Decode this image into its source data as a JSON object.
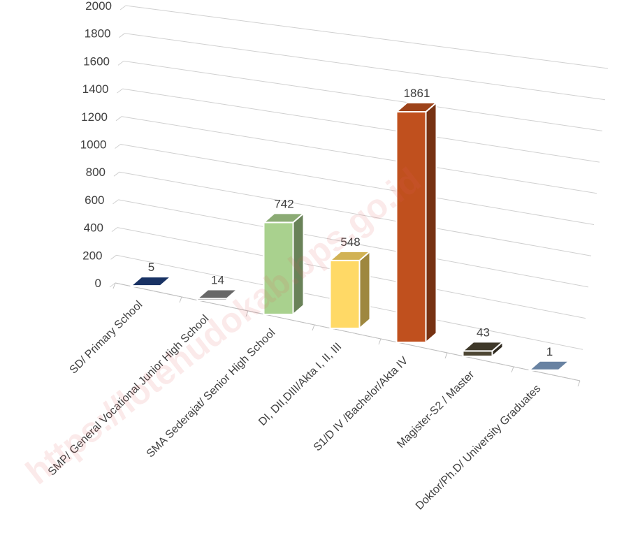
{
  "chart_data": {
    "type": "bar",
    "style": "3d-column",
    "title": "",
    "xlabel": "",
    "ylabel": "",
    "ylim": [
      0,
      2000
    ],
    "yticks": [
      0,
      200,
      400,
      600,
      800,
      1000,
      1200,
      1400,
      1600,
      1800,
      2000
    ],
    "grid": true,
    "legend": "none",
    "categories": [
      "SD/ Primary School",
      "SMP/ General Vocational Junior High School",
      "SMA Sederajat/ Senior High School",
      "DI, DII,DIII/Akta I, II, III",
      "S1/D IV /Bachelor/Akta IV",
      "Magister-S2 / Master",
      "Doktor/Ph.D/ University Graduates"
    ],
    "values": [
      5,
      14,
      742,
      548,
      1861,
      43,
      1
    ],
    "colors": [
      "#1f3d7a",
      "#7f7f7f",
      "#a9d18e",
      "#ffd966",
      "#c0501e",
      "#4d4633",
      "#7f9fc6"
    ],
    "watermark": "https://lotehudokab.bps.go.id"
  }
}
